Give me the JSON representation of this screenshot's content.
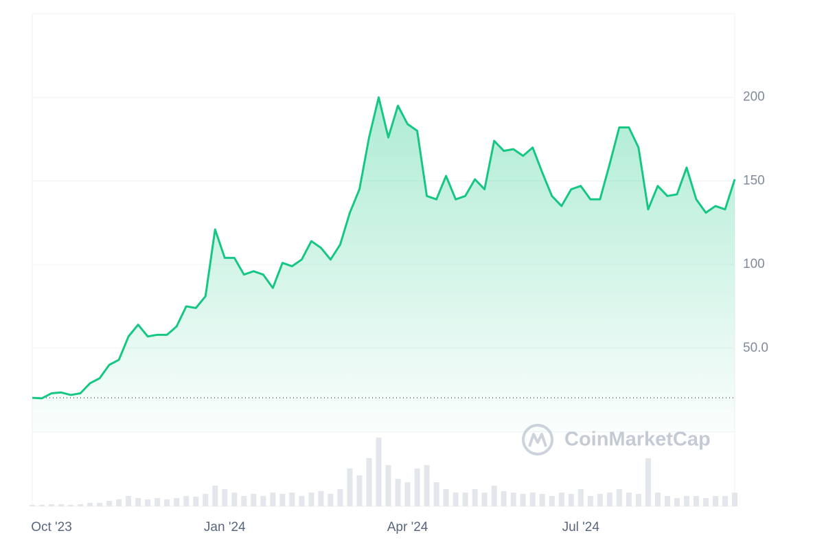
{
  "chart_data": {
    "type": "line",
    "color": "#16c784",
    "categories": [
      null,
      null,
      "Oct '23",
      null,
      null,
      null,
      null,
      null,
      null,
      null,
      null,
      null,
      null,
      null,
      null,
      null,
      null,
      null,
      null,
      null,
      "Jan '24",
      null,
      null,
      null,
      null,
      null,
      null,
      null,
      null,
      null,
      null,
      null,
      null,
      null,
      null,
      null,
      null,
      null,
      null,
      "Apr '24",
      null,
      null,
      null,
      null,
      null,
      null,
      null,
      null,
      null,
      null,
      null,
      null,
      null,
      null,
      null,
      null,
      null,
      "Jul '24",
      null,
      null,
      null,
      null,
      null,
      null,
      null,
      null,
      null,
      null,
      null,
      null,
      null,
      null,
      null,
      null
    ],
    "values": [
      20.3,
      20,
      23,
      23.5,
      22,
      23,
      29,
      32,
      40,
      43,
      57,
      64,
      57,
      58,
      58,
      63,
      75,
      74,
      81,
      121,
      104,
      104,
      94,
      96,
      94,
      86,
      101,
      99,
      103,
      114,
      110,
      103,
      112,
      131,
      145,
      176,
      200,
      176,
      195,
      184,
      180,
      141,
      139,
      153,
      139,
      141,
      151,
      145,
      174,
      168,
      169,
      165,
      170,
      155,
      141,
      135,
      145,
      147,
      139,
      139,
      160,
      182,
      182,
      170,
      133,
      147,
      141,
      142,
      158,
      139,
      131,
      135,
      133,
      151
    ],
    "ylim": [
      0,
      250
    ],
    "yticks": [
      {
        "value": 50,
        "label": "50.0"
      },
      100,
      150,
      200
    ],
    "grid": true,
    "volume": {
      "ylim": [
        0,
        100
      ],
      "color": "#e3e6ea",
      "values": [
        2,
        2,
        3,
        3,
        2,
        3,
        5,
        5,
        8,
        10,
        15,
        12,
        10,
        12,
        10,
        12,
        15,
        14,
        18,
        30,
        25,
        20,
        15,
        18,
        15,
        20,
        18,
        20,
        15,
        20,
        22,
        18,
        25,
        55,
        45,
        70,
        100,
        60,
        40,
        35,
        55,
        60,
        35,
        25,
        20,
        20,
        25,
        20,
        30,
        22,
        20,
        18,
        20,
        18,
        15,
        20,
        18,
        25,
        15,
        18,
        20,
        25,
        20,
        18,
        70,
        20,
        15,
        12,
        15,
        15,
        12,
        15,
        15,
        20
      ]
    },
    "watermark": "CoinMarketCap"
  }
}
